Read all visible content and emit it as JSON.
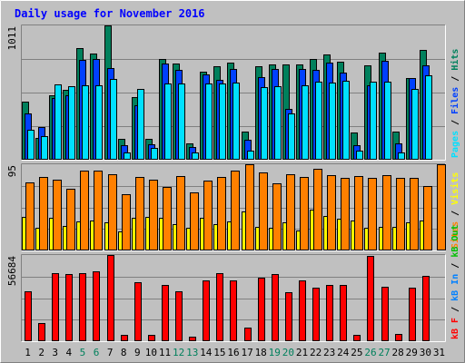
{
  "title": "Daily usage for November 2016",
  "colors": {
    "frame_bg": "#C0C0C0",
    "title": "#0000FF",
    "border_light": "#FFFFFF",
    "border_dark": "#808080",
    "grid": "#808080",
    "axis_text": "#000000",
    "weekend_text": "#00805C",
    "bar_outline": "#000000",
    "hits": "#00805C",
    "files": "#0040FF",
    "pages": "#00E0FF",
    "visits": "#FFFF00",
    "sites": "#FF8000",
    "kb_in": "#0080FF",
    "kb_out": "#00C000",
    "kb_f": "#FF0000"
  },
  "chart_data": [
    {
      "type": "bar",
      "panel": "requests",
      "ylabel_max": "1011",
      "ylim": [
        0,
        1011
      ],
      "axis_legend": [
        {
          "text": "Pages",
          "color_key": "pages"
        },
        {
          "text": "Files",
          "color_key": "files"
        },
        {
          "text": "Hits",
          "color_key": "hits"
        }
      ],
      "separator": " / ",
      "series": [
        {
          "name": "Hits",
          "color_key": "hits",
          "values": [
            434,
            162,
            482,
            524,
            838,
            801,
            1011,
            158,
            471,
            155,
            761,
            726,
            124,
            660,
            705,
            733,
            213,
            705,
            720,
            720,
            719,
            761,
            790,
            739,
            205,
            712,
            809,
            210,
            614,
            826,
            0
          ]
        },
        {
          "name": "Files",
          "color_key": "files",
          "values": [
            347,
            247,
            463,
            486,
            749,
            757,
            692,
            107,
            410,
            113,
            723,
            677,
            95,
            642,
            598,
            683,
            150,
            624,
            681,
            384,
            684,
            678,
            731,
            658,
            106,
            558,
            743,
            120,
            617,
            710,
            0
          ]
        },
        {
          "name": "Pages",
          "color_key": "pages",
          "values": [
            225,
            181,
            570,
            555,
            563,
            562,
            607,
            54,
            533,
            90,
            574,
            573,
            57,
            573,
            571,
            584,
            65,
            545,
            550,
            346,
            560,
            590,
            582,
            597,
            65,
            590,
            587,
            53,
            531,
            638,
            0
          ]
        }
      ]
    },
    {
      "type": "bar",
      "panel": "visitors",
      "ylabel_max": "95",
      "ylim": [
        0,
        95
      ],
      "axis_legend": [
        {
          "text": "Sites",
          "color_key": "sites"
        },
        {
          "text": "Visits",
          "color_key": "visits"
        }
      ],
      "separator": " / ",
      "series": [
        {
          "name": "Visits",
          "color_key": "visits",
          "values": [
            37,
            25,
            36,
            27,
            32,
            33,
            31,
            21,
            36,
            37,
            36,
            29,
            25,
            36,
            29,
            32,
            43,
            26,
            25,
            31,
            22,
            45,
            38,
            35,
            33,
            25,
            26,
            26,
            31,
            33,
            0
          ]
        },
        {
          "name": "Sites",
          "color_key": "sites",
          "values": [
            75,
            81,
            78,
            68,
            88,
            88,
            84,
            62,
            81,
            78,
            70,
            82,
            64,
            77,
            81,
            88,
            95,
            86,
            74,
            84,
            81,
            90,
            83,
            80,
            82,
            80,
            83,
            80,
            80,
            71,
            95
          ]
        }
      ]
    },
    {
      "type": "bar",
      "panel": "kbytes",
      "ylabel_max": "56684",
      "ylim": [
        0,
        56684
      ],
      "axis_legend": [
        {
          "text": "kB F",
          "color_key": "kb_f"
        },
        {
          "text": "kB In",
          "color_key": "kb_in"
        },
        {
          "text": "kB Out",
          "color_key": "kb_out"
        }
      ],
      "separator": " / ",
      "series": [
        {
          "name": "kB F",
          "color_key": "kb_f",
          "values": [
            33000,
            12000,
            45000,
            44000,
            45000,
            46000,
            56684,
            4000,
            39000,
            4000,
            37000,
            33000,
            3000,
            40000,
            45000,
            40000,
            9000,
            42000,
            44000,
            32000,
            40000,
            35000,
            37000,
            37000,
            4000,
            56000,
            36000,
            5000,
            35000,
            43000,
            0
          ]
        }
      ]
    }
  ],
  "x_axis": {
    "categories": [
      "1",
      "2",
      "3",
      "4",
      "5",
      "6",
      "7",
      "8",
      "9",
      "10",
      "11",
      "12",
      "13",
      "14",
      "15",
      "16",
      "17",
      "18",
      "19",
      "20",
      "21",
      "22",
      "23",
      "24",
      "25",
      "26",
      "27",
      "28",
      "29",
      "30",
      "31"
    ],
    "weekend_days": [
      5,
      6,
      12,
      13,
      19,
      20,
      26,
      27
    ]
  }
}
